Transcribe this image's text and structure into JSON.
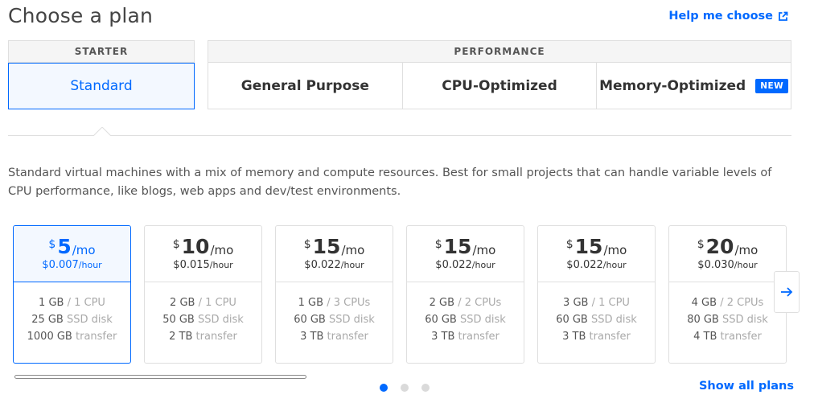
{
  "page": {
    "title": "Choose a plan",
    "help_link": "Help me choose",
    "help_icon": "external-link-icon",
    "accent_color": "#0069ff"
  },
  "categories": {
    "starter": {
      "label": "STARTER",
      "tabs": [
        "Standard"
      ]
    },
    "performance": {
      "label": "PERFORMANCE",
      "tabs": [
        "General Purpose",
        "CPU-Optimized",
        "Memory-Optimized"
      ]
    },
    "new_badge": "NEW",
    "selected_tab": "Standard"
  },
  "description": "Standard virtual machines with a mix of memory and compute resources. Best for small projects that can handle variable levels of CPU performance, like blogs, web apps and dev/test environments.",
  "plans": [
    {
      "currency": "$",
      "amount": "5",
      "period": "/mo",
      "hourly": "$0.007",
      "hourly_unit": "/hour",
      "memory": "1 GB",
      "cpu": "/ 1 CPU",
      "disk": "25 GB",
      "disk_label": "SSD disk",
      "transfer": "1000 GB",
      "transfer_label": "transfer",
      "selected": true
    },
    {
      "currency": "$",
      "amount": "10",
      "period": "/mo",
      "hourly": "$0.015",
      "hourly_unit": "/hour",
      "memory": "2 GB",
      "cpu": "/ 1 CPU",
      "disk": "50 GB",
      "disk_label": "SSD disk",
      "transfer": "2 TB",
      "transfer_label": "transfer"
    },
    {
      "currency": "$",
      "amount": "15",
      "period": "/mo",
      "hourly": "$0.022",
      "hourly_unit": "/hour",
      "memory": "1 GB",
      "cpu": "/ 3 CPUs",
      "disk": "60 GB",
      "disk_label": "SSD disk",
      "transfer": "3 TB",
      "transfer_label": "transfer"
    },
    {
      "currency": "$",
      "amount": "15",
      "period": "/mo",
      "hourly": "$0.022",
      "hourly_unit": "/hour",
      "memory": "2 GB",
      "cpu": "/ 2 CPUs",
      "disk": "60 GB",
      "disk_label": "SSD disk",
      "transfer": "3 TB",
      "transfer_label": "transfer"
    },
    {
      "currency": "$",
      "amount": "15",
      "period": "/mo",
      "hourly": "$0.022",
      "hourly_unit": "/hour",
      "memory": "3 GB",
      "cpu": "/ 1 CPU",
      "disk": "60 GB",
      "disk_label": "SSD disk",
      "transfer": "3 TB",
      "transfer_label": "transfer"
    },
    {
      "currency": "$",
      "amount": "20",
      "period": "/mo",
      "hourly": "$0.030",
      "hourly_unit": "/hour",
      "memory": "4 GB",
      "cpu": "/ 2 CPUs",
      "disk": "80 GB",
      "disk_label": "SSD disk",
      "transfer": "4 TB",
      "transfer_label": "transfer"
    }
  ],
  "carousel": {
    "next_icon": "arrow-right-icon",
    "page_count": 3,
    "active_page": 1
  },
  "show_all": "Show all plans"
}
